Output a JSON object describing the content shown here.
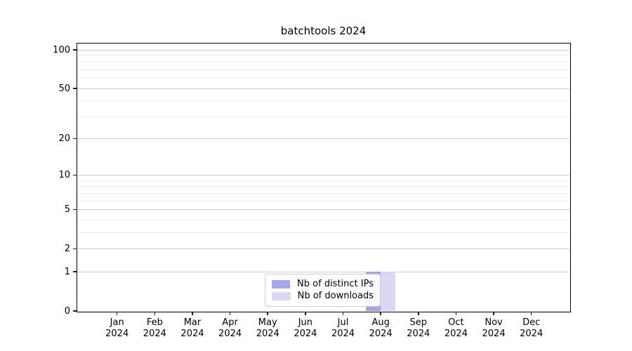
{
  "chart_data": {
    "type": "bar",
    "title": "batchtools 2024",
    "categories": [
      "Jan",
      "Feb",
      "Mar",
      "Apr",
      "May",
      "Jun",
      "Jul",
      "Aug",
      "Sep",
      "Oct",
      "Nov",
      "Dec"
    ],
    "x_year_label": "2024",
    "series": [
      {
        "name": "Nb of distinct IPs",
        "key": "distinct-ips",
        "color": "#a5a5e8",
        "values": [
          0,
          0,
          0,
          0,
          0,
          0,
          0,
          1,
          0,
          0,
          0,
          0
        ]
      },
      {
        "name": "Nb of downloads",
        "key": "downloads",
        "color": "#d9d9f6",
        "values": [
          0,
          0,
          0,
          0,
          0,
          0,
          0,
          1,
          0,
          0,
          0,
          0
        ]
      }
    ],
    "y_axis": {
      "scale": "log1p",
      "labeled_ticks": [
        0,
        1,
        2,
        5,
        10,
        20,
        50,
        100
      ],
      "minor_gridlines": [
        3,
        4,
        6,
        7,
        8,
        9,
        30,
        40,
        60,
        70,
        80,
        90
      ],
      "ylim": [
        0,
        112
      ]
    },
    "legend": {
      "position": "lower-center"
    },
    "grid": true
  },
  "colors": {
    "distinct_ips_bar": "#a5a5e8",
    "downloads_bar": "#d9d9f6",
    "major_gridline": "#cbcbcb",
    "minor_gridline": "#ededed",
    "axis_spine": "#000000",
    "legend_border": "#cccccc",
    "background": "#ffffff",
    "text": "#000000"
  }
}
